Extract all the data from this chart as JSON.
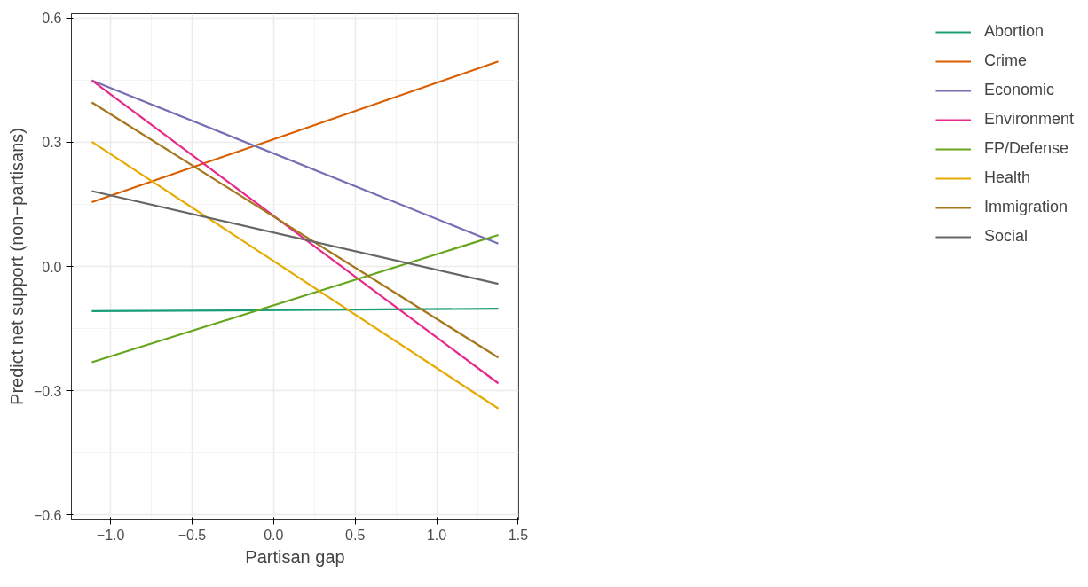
{
  "chart_data": {
    "type": "line",
    "xlabel": "Partisan gap",
    "ylabel": "Predict net support (non−partisans)",
    "xlim": [
      -1.24,
      1.503
    ],
    "ylim": [
      -0.61,
      0.61
    ],
    "xticks": [
      {
        "value": -1.0,
        "label": "−1.0"
      },
      {
        "value": -0.5,
        "label": "−0.5"
      },
      {
        "value": 0.0,
        "label": "0.0"
      },
      {
        "value": 0.5,
        "label": "0.5"
      },
      {
        "value": 1.0,
        "label": "1.0"
      },
      {
        "value": 1.5,
        "label": "1.5"
      }
    ],
    "yticks": [
      {
        "value": -0.6,
        "label": "−0.6"
      },
      {
        "value": -0.3,
        "label": "−0.3"
      },
      {
        "value": 0.0,
        "label": "0.0"
      },
      {
        "value": 0.3,
        "label": "0.3"
      },
      {
        "value": 0.6,
        "label": "0.6"
      }
    ],
    "grid": true,
    "legend": "right",
    "marker": "none",
    "line_style": "solid",
    "x": [
      -1.115,
      1.378
    ],
    "series": [
      {
        "name": "Abortion",
        "color": "#1b9e77",
        "values": [
          -0.108,
          -0.102
        ]
      },
      {
        "name": "Crime",
        "color": "#d95f02",
        "values": [
          0.155,
          0.495
        ]
      },
      {
        "name": "Economic",
        "color": "#7570b3",
        "values": [
          0.449,
          0.055
        ]
      },
      {
        "name": "Environment",
        "color": "#e7298a",
        "values": [
          0.449,
          -0.282
        ]
      },
      {
        "name": "FP/Defense",
        "color": "#66a61e",
        "values": [
          -0.231,
          0.076
        ]
      },
      {
        "name": "Health",
        "color": "#e6ab02",
        "values": [
          0.301,
          -0.343
        ]
      },
      {
        "name": "Immigration",
        "color": "#a6761d",
        "values": [
          0.396,
          -0.22
        ]
      },
      {
        "name": "Social",
        "color": "#666666",
        "values": [
          0.182,
          -0.042
        ]
      }
    ]
  }
}
